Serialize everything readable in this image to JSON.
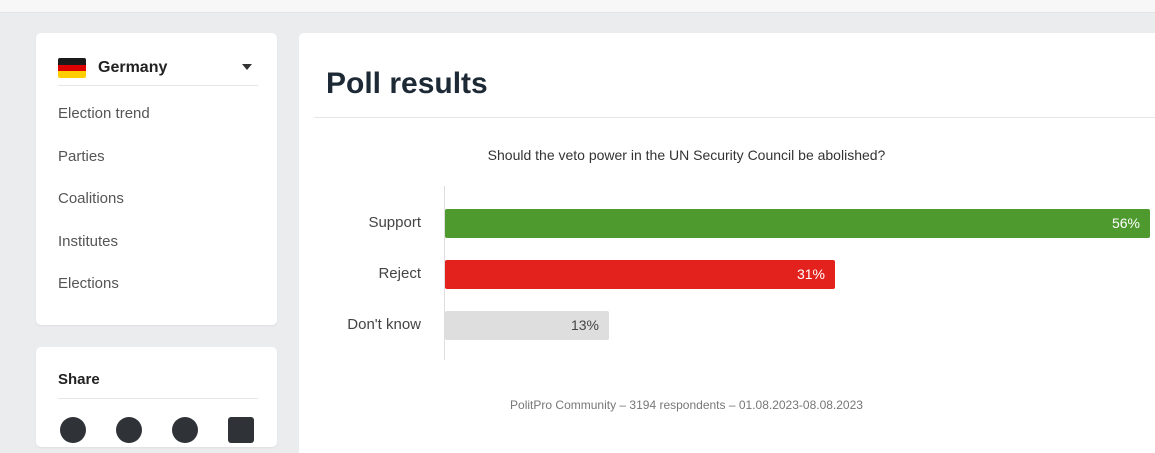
{
  "sidebar": {
    "country": "Germany",
    "nav": [
      "Election trend",
      "Parties",
      "Coalitions",
      "Institutes",
      "Elections"
    ]
  },
  "share": {
    "title": "Share",
    "icons": [
      "twitter-icon",
      "facebook-icon",
      "reddit-icon",
      "linkedin-icon"
    ]
  },
  "main": {
    "title": "Poll results",
    "question": "Should the veto power in the UN Security Council be abolished?",
    "source": "PolitPro Community – 3194 respondents – 01.08.2023-08.08.2023"
  },
  "chart_data": {
    "type": "bar",
    "orientation": "horizontal",
    "title": "Should the veto power in the UN Security Council be abolished?",
    "categories": [
      "Support",
      "Reject",
      "Don't know"
    ],
    "values": [
      56,
      31,
      13
    ],
    "labels": [
      "56%",
      "31%",
      "13%"
    ],
    "colors": [
      "#4e9a2f",
      "#e3221d",
      "#dedede"
    ],
    "xlim": [
      0,
      56
    ]
  }
}
